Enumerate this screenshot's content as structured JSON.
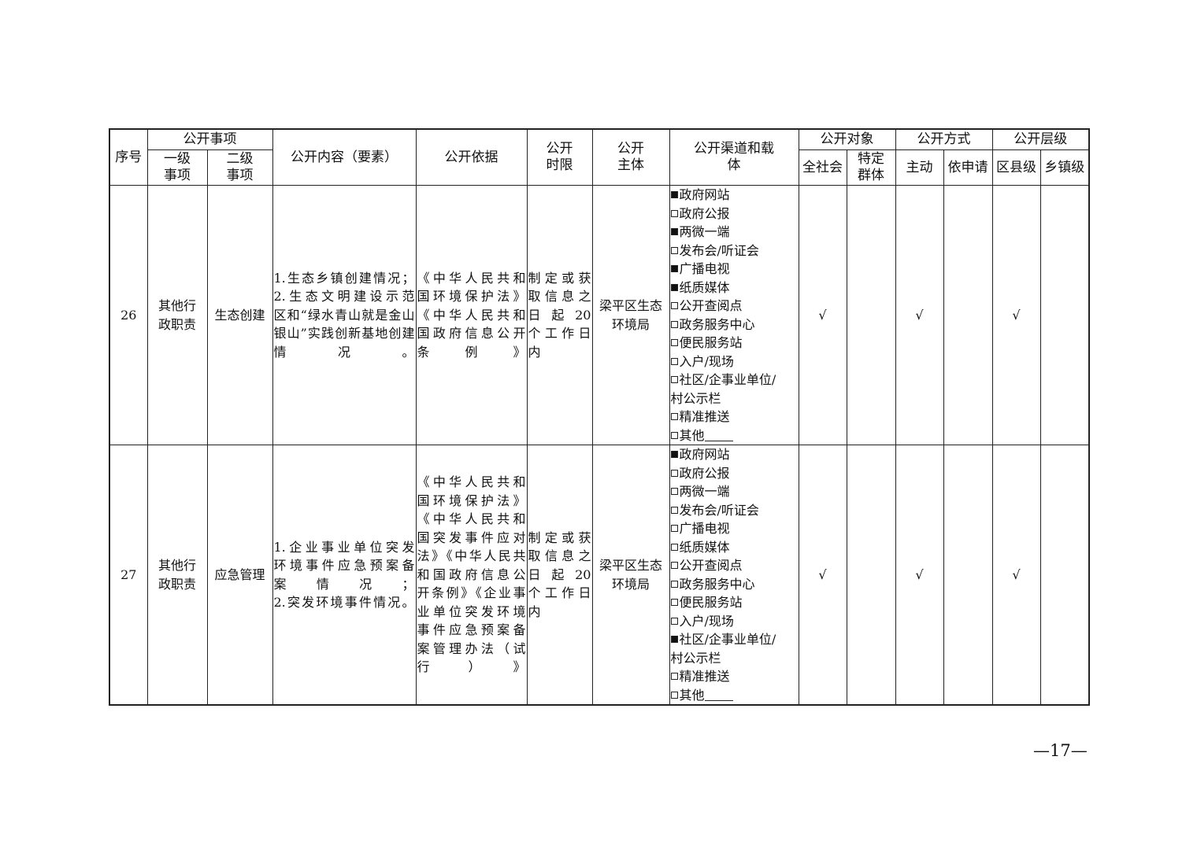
{
  "header": {
    "seq": "序号",
    "item_group": "公开事项",
    "level1": "一级事项",
    "level2": "二级事项",
    "content": "公开内容（要素）",
    "basis": "公开依据",
    "time_limit": "公开时限",
    "subject": "公开主体",
    "channel": "公开渠道和载体",
    "target_group": "公开对象",
    "target_all": "全社会",
    "target_specific": "特定群体",
    "mode_group": "公开方式",
    "mode_active": "主动",
    "mode_request": "依申请",
    "level_group": "公开层级",
    "level_county": "区县级",
    "level_town": "乡镇级"
  },
  "rows": [
    {
      "seq": "26",
      "level1": [
        "其他行",
        "政职责"
      ],
      "level2": [
        "生态创建"
      ],
      "content": [
        "1.生态乡镇创建情况；",
        "2.生态文明建设示范",
        "区和“绿水青山就是金山",
        "银山”实践创新基地创建",
        "情况。"
      ],
      "basis": [
        "《中华人民共和",
        "国环境保护法》",
        "《中华人民共和",
        "国政府信息公开",
        "条例》"
      ],
      "time_limit": [
        "制定或获",
        "取信息之",
        "日 起 20",
        "个工作日",
        "内"
      ],
      "subject": [
        "梁平区生态",
        "环境局"
      ],
      "channels": [
        {
          "label": "政府网站",
          "checked": true
        },
        {
          "label": "政府公报",
          "checked": false
        },
        {
          "label": "两微一端",
          "checked": true
        },
        {
          "label": "发布会/听证会",
          "checked": false
        },
        {
          "label": "广播电视",
          "checked": true
        },
        {
          "label": "纸质媒体",
          "checked": true
        },
        {
          "label": "公开查阅点",
          "checked": false
        },
        {
          "label": "政务服务中心",
          "checked": false
        },
        {
          "label": "便民服务站",
          "checked": false
        },
        {
          "label": "入户/现场",
          "checked": false
        },
        {
          "label": "社区/企事业单位/",
          "cont": "村公示栏",
          "checked": false
        },
        {
          "label": "精准推送",
          "checked": false
        },
        {
          "label": "其他",
          "blank": true,
          "checked": false
        }
      ],
      "target_all": "√",
      "target_specific": "",
      "mode_active": "√",
      "mode_request": "",
      "level_county": "√",
      "level_town": ""
    },
    {
      "seq": "27",
      "level1": [
        "其他行",
        "政职责"
      ],
      "level2": [
        "应急管理"
      ],
      "content": [
        "1.企业事业单位突发",
        "环境事件应急预案备",
        "案情况；",
        "2.突发环境事件情况。"
      ],
      "basis": [
        "《中华人民共和",
        "国环境保护法》",
        "《中华人民共和",
        "国突发事件应对",
        "法》《中华人民共",
        "和国政府信息公",
        "开条例》《企业事",
        "业单位突发环境",
        "事件应急预案备",
        "案管理办法（试",
        "行）》"
      ],
      "time_limit": [
        "制定或获",
        "取信息之",
        "日 起 20",
        "个工作日",
        "内"
      ],
      "subject": [
        "梁平区生态",
        "环境局"
      ],
      "channels": [
        {
          "label": "政府网站",
          "checked": true
        },
        {
          "label": "政府公报",
          "checked": false
        },
        {
          "label": "两微一端",
          "checked": false
        },
        {
          "label": "发布会/听证会",
          "checked": false
        },
        {
          "label": "广播电视",
          "checked": false
        },
        {
          "label": "纸质媒体",
          "checked": false
        },
        {
          "label": "公开查阅点",
          "checked": false
        },
        {
          "label": "政务服务中心",
          "checked": false
        },
        {
          "label": "便民服务站",
          "checked": false
        },
        {
          "label": "入户/现场",
          "checked": false
        },
        {
          "label": "社区/企事业单位/",
          "cont": "村公示栏",
          "checked": true
        },
        {
          "label": "精准推送",
          "checked": false
        },
        {
          "label": "其他",
          "blank": true,
          "checked": false
        }
      ],
      "target_all": "√",
      "target_specific": "",
      "mode_active": "√",
      "mode_request": "",
      "level_county": "√",
      "level_town": ""
    }
  ],
  "page_number": "—17—"
}
